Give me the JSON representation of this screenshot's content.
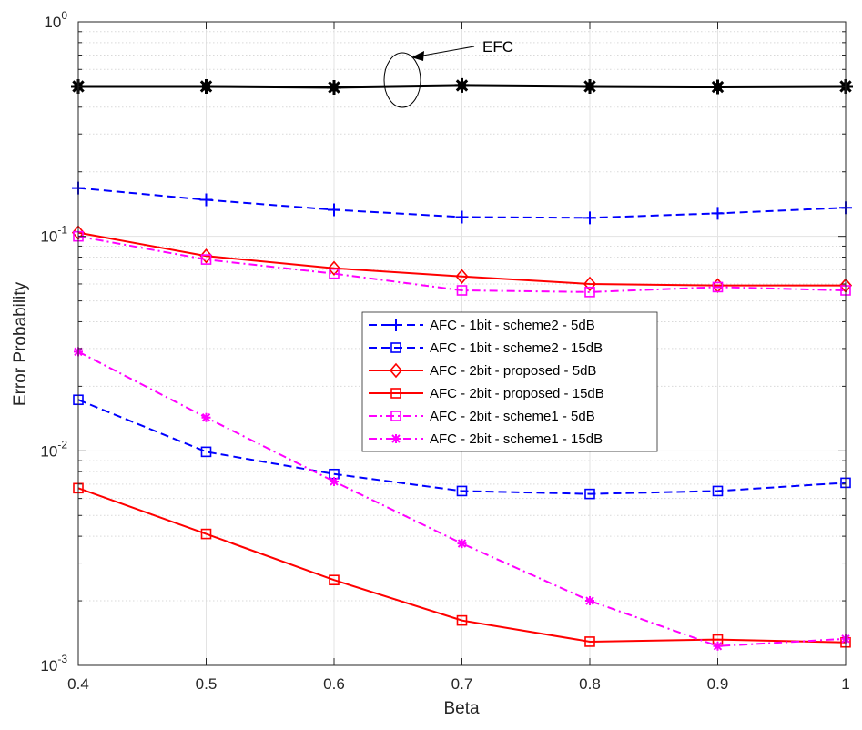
{
  "chart_data": {
    "type": "line",
    "title": "",
    "xlabel": "Beta",
    "ylabel": "Error Probability",
    "xscale": "linear",
    "yscale": "log",
    "xlim": [
      0.4,
      1.0
    ],
    "ylim": [
      0.001,
      1
    ],
    "grid": true,
    "x": [
      0.4,
      0.5,
      0.6,
      0.7,
      0.8,
      0.9,
      1.0
    ],
    "xticks": [
      "0.4",
      "0.5",
      "0.6",
      "0.7",
      "0.8",
      "0.9",
      "1"
    ],
    "yticks": [
      {
        "value": 0.001,
        "base": "10",
        "exp": "-3"
      },
      {
        "value": 0.01,
        "base": "10",
        "exp": "-2"
      },
      {
        "value": 0.1,
        "base": "10",
        "exp": "-1"
      },
      {
        "value": 1,
        "base": "10",
        "exp": "0"
      }
    ],
    "series": [
      {
        "name": "EFC",
        "color": "#000000",
        "dash": "solid",
        "marker": "star-burst",
        "in_legend": false,
        "values": [
          0.5,
          0.5,
          0.495,
          0.505,
          0.5,
          0.497,
          0.5
        ]
      },
      {
        "name": "AFC - 1bit - scheme2 - 5dB",
        "color": "#0000ff",
        "dash": "dashed",
        "marker": "plus",
        "values": [
          0.168,
          0.148,
          0.133,
          0.123,
          0.122,
          0.128,
          0.136
        ]
      },
      {
        "name": "AFC - 1bit - scheme2 - 15dB",
        "color": "#0000ff",
        "dash": "dashed",
        "marker": "square",
        "values": [
          0.0173,
          0.0099,
          0.0078,
          0.0065,
          0.0063,
          0.0065,
          0.0071
        ]
      },
      {
        "name": "AFC - 2bit - proposed - 5dB",
        "color": "#ff0000",
        "dash": "solid",
        "marker": "diamond",
        "values": [
          0.104,
          0.081,
          0.071,
          0.065,
          0.06,
          0.059,
          0.059
        ]
      },
      {
        "name": "AFC - 2bit - proposed - 15dB",
        "color": "#ff0000",
        "dash": "solid",
        "marker": "square",
        "values": [
          0.0067,
          0.0041,
          0.0025,
          0.00162,
          0.00129,
          0.00132,
          0.00128
        ]
      },
      {
        "name": "AFC - 2bit - scheme1 - 5dB",
        "color": "#ff00ff",
        "dash": "dashdot",
        "marker": "square",
        "values": [
          0.1,
          0.078,
          0.067,
          0.056,
          0.055,
          0.058,
          0.056
        ]
      },
      {
        "name": "AFC - 2bit - scheme1 - 15dB",
        "color": "#ff00ff",
        "dash": "dashdot",
        "marker": "asterisk",
        "values": [
          0.029,
          0.0143,
          0.0072,
          0.0037,
          0.002,
          0.00123,
          0.00133
        ]
      }
    ],
    "annotations": [
      {
        "text": "EFC",
        "type": "arrow-with-ellipse",
        "points_to_series": "EFC"
      }
    ],
    "legend_position": "center-right"
  }
}
